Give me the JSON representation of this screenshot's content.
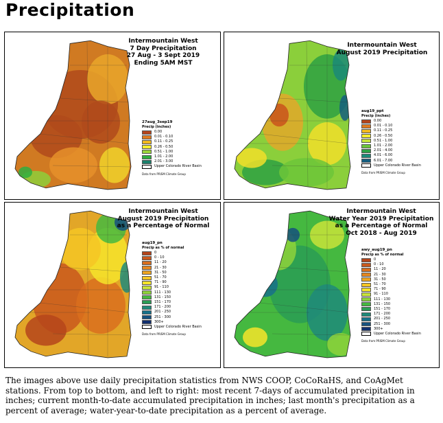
{
  "page": {
    "heading": "Precipitation",
    "caption": "The images above use daily precipitation statistics from NWS COOP, CoCoRaHS, and CoAgMet stations. From top to bottom, and left to right: most recent 7-days of accumulated precipitation in inches; current month-to-date accumulated precipitation in inches; last month's precipitation as a percent of average; water-year-to-date precipitation as a percent of average."
  },
  "panels": [
    {
      "title_lines": [
        "Intermountain West",
        "7 Day Precipitation",
        "27 Aug - 3 Sept 2019",
        "Ending 5AM MST"
      ],
      "legend_heading": "27aug_3sep19",
      "legend_sub": "Precip (inches)",
      "basin_label": "Upper Colorado River Basin",
      "credit": "Data from PRISM Climate Group",
      "classes": [
        {
          "label": "0.00",
          "color": "#b5451b"
        },
        {
          "label": "0.01 - 0.10",
          "color": "#e07b1e"
        },
        {
          "label": "0.11 - 0.25",
          "color": "#f2b91e"
        },
        {
          "label": "0.26 - 0.50",
          "color": "#f7ef2a"
        },
        {
          "label": "0.51 - 1.00",
          "color": "#9bd33a"
        },
        {
          "label": "1.01 - 2.00",
          "color": "#2fae3f"
        },
        {
          "label": "2.01 - 3.00",
          "color": "#1a7f6b"
        }
      ]
    },
    {
      "title_lines": [
        "Intermountain West",
        "August 2019 Precipitation"
      ],
      "legend_heading": "aug19_ppt",
      "legend_sub": "Precip (inches)",
      "basin_label": "Upper Colorado River Basin",
      "credit": "Data from PRISM Climate Group",
      "classes": [
        {
          "label": "0.00",
          "color": "#b5451b"
        },
        {
          "label": "0.01 - 0.10",
          "color": "#e07b1e"
        },
        {
          "label": "0.11 - 0.25",
          "color": "#f2b91e"
        },
        {
          "label": "0.26 - 0.50",
          "color": "#f7ef2a"
        },
        {
          "label": "0.51 - 1.00",
          "color": "#c7e33a"
        },
        {
          "label": "1.01 - 2.00",
          "color": "#6cc63a"
        },
        {
          "label": "2.01 - 4.00",
          "color": "#2ea143"
        },
        {
          "label": "4.01 - 6.00",
          "color": "#1a8a78"
        },
        {
          "label": "6.01 - 7.00",
          "color": "#145e7f"
        }
      ]
    },
    {
      "title_lines": [
        "Intermountain West",
        "August 2019 Precipitation",
        "as a Percentage of Normal"
      ],
      "legend_heading": "aug19_pn",
      "legend_sub": "Precip as % of normal",
      "basin_label": "Upper Colorado River Basin",
      "credit": "Data from PRISM Climate Group",
      "classes": [
        {
          "label": "0",
          "color": "#b5451b"
        },
        {
          "label": "0 - 10",
          "color": "#c9581c"
        },
        {
          "label": "11 - 20",
          "color": "#d96e1d"
        },
        {
          "label": "21 - 30",
          "color": "#e5871f"
        },
        {
          "label": "31 - 50",
          "color": "#eea521"
        },
        {
          "label": "51 - 70",
          "color": "#f4c524"
        },
        {
          "label": "71 - 90",
          "color": "#f6e42a"
        },
        {
          "label": "91 - 110",
          "color": "#c9e33a"
        },
        {
          "label": "111 - 130",
          "color": "#8ed23b"
        },
        {
          "label": "131 - 150",
          "color": "#45b840"
        },
        {
          "label": "151 - 170",
          "color": "#2a9c55"
        },
        {
          "label": "171 - 200",
          "color": "#1f8a7a"
        },
        {
          "label": "201 - 250",
          "color": "#17718a"
        },
        {
          "label": "251 - 300",
          "color": "#15507e"
        },
        {
          "label": "300+",
          "color": "#0f2e6e"
        }
      ]
    },
    {
      "title_lines": [
        "Intermountain West",
        "Water Year 2019 Precipitation",
        "as a Percentage of Normal",
        "Oct 2018 - Aug 2019"
      ],
      "legend_heading": "awy_aug19_pn",
      "legend_sub": "Precip as % of normal",
      "basin_label": "Upper Colorado River Basin",
      "credit": "Data from PRISM Climate Group",
      "classes": [
        {
          "label": "0",
          "color": "#b5451b"
        },
        {
          "label": "0 - 10",
          "color": "#c9581c"
        },
        {
          "label": "11 - 20",
          "color": "#d96e1d"
        },
        {
          "label": "21 - 30",
          "color": "#e5871f"
        },
        {
          "label": "31 - 50",
          "color": "#eea521"
        },
        {
          "label": "51 - 70",
          "color": "#f4c524"
        },
        {
          "label": "71 - 90",
          "color": "#f6e42a"
        },
        {
          "label": "91 - 110",
          "color": "#c9e33a"
        },
        {
          "label": "111 - 130",
          "color": "#8ed23b"
        },
        {
          "label": "131 - 150",
          "color": "#45b840"
        },
        {
          "label": "151 - 170",
          "color": "#2a9c55"
        },
        {
          "label": "171 - 200",
          "color": "#1f8a7a"
        },
        {
          "label": "201 - 250",
          "color": "#17718a"
        },
        {
          "label": "251 - 300",
          "color": "#15507e"
        },
        {
          "label": "300+",
          "color": "#0f2e6e"
        }
      ]
    }
  ]
}
